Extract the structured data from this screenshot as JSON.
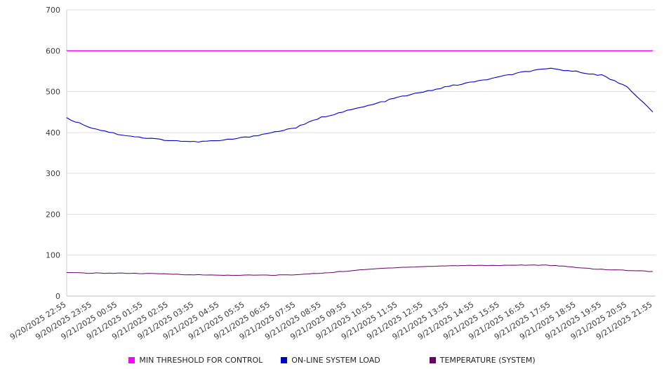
{
  "chart_data": {
    "type": "line",
    "title": "",
    "xlabel": "",
    "ylabel": "",
    "ylim": [
      0,
      700
    ],
    "ytick_step": 100,
    "yticks": [
      0,
      100,
      200,
      300,
      400,
      500,
      600,
      700
    ],
    "grid": true,
    "legend_position": "bottom",
    "categories": [
      "9/20/2025 22:55",
      "9/20/2025 23:55",
      "9/21/2025 00:55",
      "9/21/2025 01:55",
      "9/21/2025 02:55",
      "9/21/2025 03:55",
      "9/21/2025 04:55",
      "9/21/2025 05:55",
      "9/21/2025 06:55",
      "9/21/2025 07:55",
      "9/21/2025 08:55",
      "9/21/2025 09:55",
      "9/21/2025 10:55",
      "9/21/2025 11:55",
      "9/21/2025 12:55",
      "9/21/2025 13:55",
      "9/21/2025 14:55",
      "9/21/2025 15:55",
      "9/21/2025 16:55",
      "9/21/2025 17:55",
      "9/21/2025 18:55",
      "9/21/2025 19:55",
      "9/21/2025 20:55",
      "9/21/2025 21:55"
    ],
    "series": [
      {
        "name": "MIN THRESHOLD FOR CONTROL",
        "color": "#ff00ff",
        "values": [
          600,
          600,
          600,
          600,
          600,
          600,
          600,
          600,
          600,
          600,
          600,
          600,
          600,
          600,
          600,
          600,
          600,
          600,
          600,
          600,
          600,
          600,
          600,
          600
        ]
      },
      {
        "name": "ON-LINE SYSTEM LOAD",
        "color": "#0000cc",
        "values": [
          435,
          411,
          396,
          387,
          381,
          377,
          380,
          388,
          399,
          412,
          437,
          453,
          468,
          486,
          499,
          513,
          524,
          536,
          549,
          556,
          549,
          540,
          512,
          450
        ]
      },
      {
        "name": "TEMPERATURE (SYSTEM)",
        "color": "#660066",
        "values": [
          57,
          56,
          56,
          55,
          54,
          52,
          51,
          51,
          51,
          52,
          56,
          61,
          66,
          70,
          72,
          74,
          75,
          75,
          76,
          75,
          70,
          65,
          63,
          60
        ]
      }
    ]
  }
}
